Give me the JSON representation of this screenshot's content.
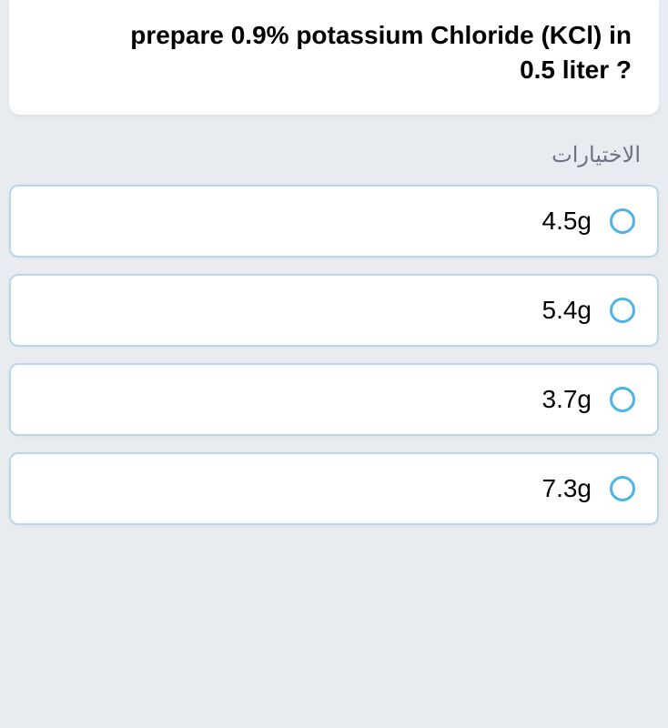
{
  "question": {
    "line1": "prepare 0.9% potassium Chloride (KCl) in",
    "line2": "0.5 liter ?"
  },
  "choices_label": "الاختيارات",
  "options": [
    {
      "label": "4.5g"
    },
    {
      "label": "5.4g"
    },
    {
      "label": "3.7g"
    },
    {
      "label": "7.3g"
    }
  ],
  "colors": {
    "background": "#e8ebf0",
    "card_bg": "#ffffff",
    "option_border": "#b8d8e8",
    "radio_border": "#4fb3e8",
    "text_primary": "#000000",
    "text_secondary": "#6b7280"
  }
}
